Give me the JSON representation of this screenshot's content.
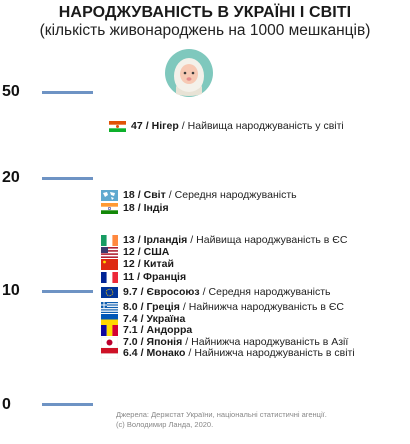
{
  "title": "НАРОДЖУВАНІСТЬ В УКРАЇНІ І СВІТІ",
  "subtitle": "(кількість живонароджень на 1000 мешканців)",
  "axis_ticks": [
    "50",
    "20",
    "10",
    "0"
  ],
  "source": {
    "line1": "Джерела: Держстат України, національні статистичні агенції.",
    "line2": "(с) Володимир Ландa, 2020."
  },
  "icons": {
    "baby": "baby-icon"
  },
  "colors": {
    "tick_bar": "#6e93c4",
    "accent_circle": "#7fc8bd"
  },
  "chart_data": {
    "type": "table",
    "title": "НАРОДЖУВАНІСТЬ В УКРАЇНІ І СВІТІ",
    "subtitle": "(кількість живонароджень на 1000 мешканців)",
    "y_ticks": [
      50,
      20,
      10,
      0
    ],
    "entries": [
      {
        "value": "47",
        "name": "Нігер",
        "note": "Найвища народжуваність у світі",
        "flag": "niger-flag"
      },
      {
        "value": "18",
        "name": "Світ",
        "note": "Середня народжуваність",
        "flag": "world-map-icon"
      },
      {
        "value": "18",
        "name": "Індія",
        "note": "",
        "flag": "india-flag"
      },
      {
        "value": "13",
        "name": "Ірландія",
        "note": "Найвища народжуваність в ЄС",
        "flag": "ireland-flag"
      },
      {
        "value": "12",
        "name": "США",
        "note": "",
        "flag": "usa-flag"
      },
      {
        "value": "12",
        "name": "Китай",
        "note": "",
        "flag": "china-flag"
      },
      {
        "value": "11",
        "name": "Франція",
        "note": "",
        "flag": "france-flag"
      },
      {
        "value": "9.7",
        "name": "Євросоюз",
        "note": "Середня народжуваність",
        "flag": "eu-flag"
      },
      {
        "value": "8.0",
        "name": "Греція",
        "note": "Найнижча народжуваність в ЄС",
        "flag": "greece-flag"
      },
      {
        "value": "7.4",
        "name": "Україна",
        "note": "",
        "flag": "ukraine-flag"
      },
      {
        "value": "7.1",
        "name": "Андорра",
        "note": "",
        "flag": "andorra-flag"
      },
      {
        "value": "7.0",
        "name": "Японія",
        "note": "Найнижча народжуваність в Азії",
        "flag": "japan-flag"
      },
      {
        "value": "6.4",
        "name": "Монако",
        "note": "Найнижча народжуваність в світі",
        "flag": "monaco-flag"
      }
    ]
  }
}
